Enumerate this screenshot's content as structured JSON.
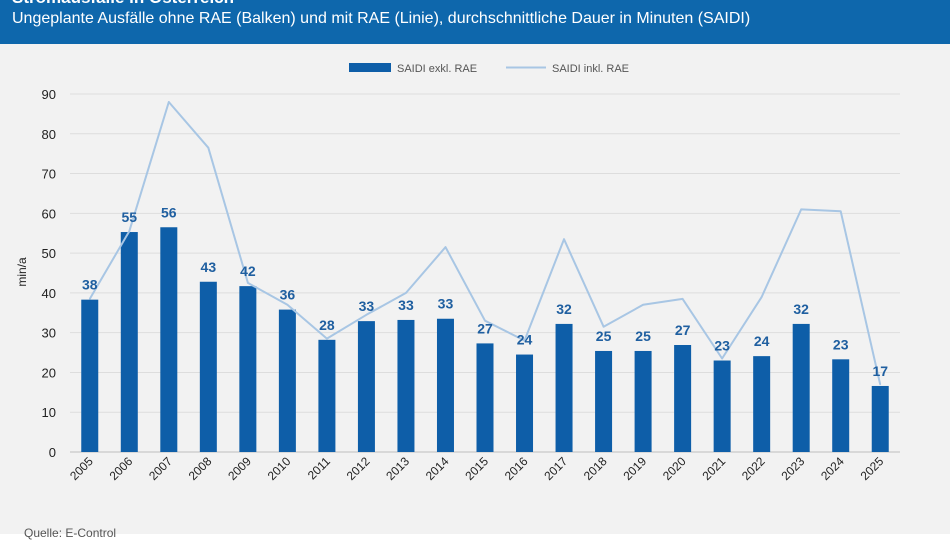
{
  "header": {
    "title": "Stromausfälle in Österreich",
    "subtitle": "Ungeplante Ausfälle ohne RAE (Balken) und mit RAE (Linie), durchschnittliche Dauer in Minuten (SAIDI)"
  },
  "source": "Quelle: E-Control",
  "colors": {
    "header": "#0e67ac",
    "bar": "#0e5ea8",
    "line": "#a8c6e4",
    "label": "#1f5fa0"
  },
  "chart_data": {
    "type": "bar",
    "title": "Stromausfälle in Österreich",
    "subtitle": "Ungeplante Ausfälle ohne RAE (Balken) und mit RAE (Linie), durchschnittliche Dauer in Minuten (SAIDI)",
    "ylabel": "min/a",
    "xlabel": "",
    "ylim": [
      0,
      90
    ],
    "yticks": [
      0,
      10,
      20,
      30,
      40,
      50,
      60,
      70,
      80,
      90
    ],
    "grid": true,
    "legend": "top-center",
    "categories": [
      "2005",
      "2006",
      "2007",
      "2008",
      "2009",
      "2010",
      "2011",
      "2012",
      "2013",
      "2014",
      "2015",
      "2016",
      "2017",
      "2018",
      "2019",
      "2020",
      "2021",
      "2022",
      "2023",
      "2024",
      "2025"
    ],
    "series": [
      {
        "name": "SAIDI exkl. RAE",
        "kind": "bar",
        "values": [
          38.3,
          55.3,
          56.5,
          42.8,
          41.7,
          35.8,
          28.2,
          32.9,
          33.2,
          33.5,
          27.3,
          24.5,
          32.2,
          25.4,
          25.4,
          26.9,
          23,
          24.1,
          32.2,
          23.3,
          16.6
        ],
        "labels": [
          "38",
          "55",
          "56",
          "43",
          "42",
          "36",
          "28",
          "33",
          "33",
          "33",
          "27",
          "24",
          "32",
          "25",
          "25",
          "27",
          "23",
          "24",
          "32",
          "23",
          "17"
        ]
      },
      {
        "name": "SAIDI inkl. RAE",
        "kind": "line",
        "values": [
          38.5,
          55.5,
          88,
          76.5,
          42.5,
          37,
          28.5,
          34.5,
          40,
          51.5,
          33,
          28,
          53.5,
          31.5,
          37,
          38.5,
          23.5,
          39,
          61,
          60.5,
          17
        ]
      }
    ]
  }
}
